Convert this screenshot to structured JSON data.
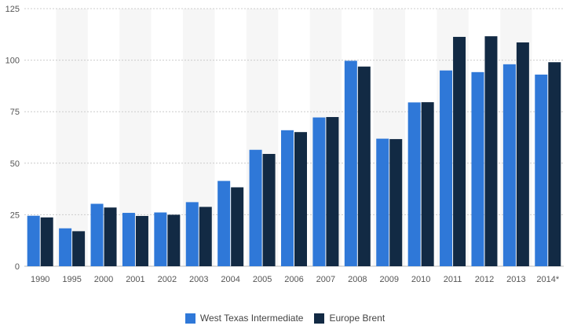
{
  "chart_data": {
    "type": "bar",
    "categories": [
      "1990",
      "1995",
      "2000",
      "2001",
      "2002",
      "2003",
      "2004",
      "2005",
      "2006",
      "2007",
      "2008",
      "2009",
      "2010",
      "2011",
      "2012",
      "2013",
      "2014*"
    ],
    "series": [
      {
        "name": "West Texas Intermediate",
        "color": "#2f78d8",
        "values": [
          24.5,
          18.4,
          30.3,
          25.9,
          26.1,
          31.1,
          41.4,
          56.5,
          66.0,
          72.2,
          99.7,
          61.9,
          79.5,
          95.0,
          94.2,
          98.0,
          93.0
        ]
      },
      {
        "name": "Europe Brent",
        "color": "#122a44",
        "values": [
          23.7,
          17.0,
          28.5,
          24.4,
          25.0,
          28.8,
          38.3,
          54.5,
          65.1,
          72.4,
          96.9,
          61.7,
          79.6,
          111.3,
          111.6,
          108.6,
          99.0
        ]
      }
    ],
    "yticks": [
      0,
      25,
      50,
      75,
      100,
      125
    ],
    "ylim": [
      0,
      125
    ],
    "grid": true,
    "legend_position": "bottom-center",
    "alternating_band_color": "#f6f6f6",
    "title": "",
    "xlabel": "",
    "ylabel": ""
  }
}
